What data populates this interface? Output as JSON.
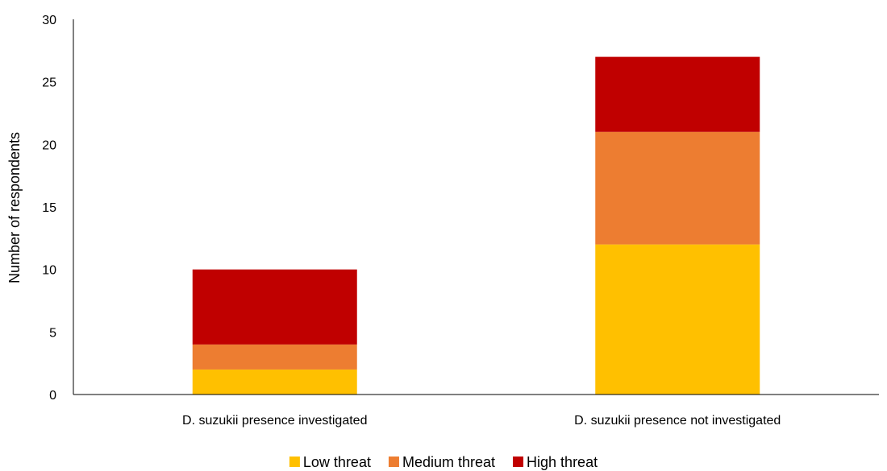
{
  "chart_data": {
    "type": "bar",
    "stacked": true,
    "categories": [
      "D. suzukii presence investigated",
      "D. suzukii presence not investigated"
    ],
    "series": [
      {
        "name": "Low threat",
        "values": [
          2,
          12
        ],
        "color": "#FFC000"
      },
      {
        "name": "Medium threat",
        "values": [
          2,
          9
        ],
        "color": "#ED7D31"
      },
      {
        "name": "High threat",
        "values": [
          6,
          6
        ],
        "color": "#C00000"
      }
    ],
    "ylabel": "Number of respondents",
    "ylim": [
      0,
      30
    ],
    "yticks": [
      0,
      5,
      10,
      15,
      20,
      25,
      30
    ],
    "grid": false,
    "legend": "bottom-center"
  }
}
